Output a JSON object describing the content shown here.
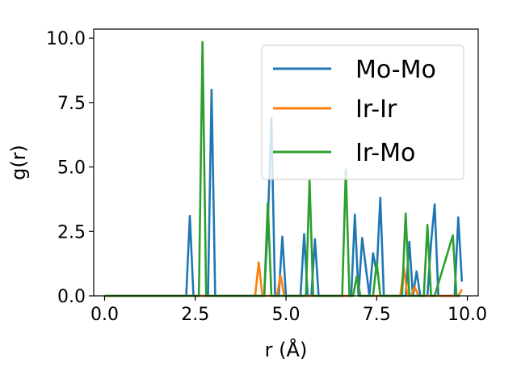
{
  "chart_data": {
    "type": "line",
    "title": "",
    "xlabel": "r (Å)",
    "ylabel": "g(r)",
    "xlim": [
      -0.3,
      10.3
    ],
    "ylim": [
      0,
      10.35
    ],
    "xticks": [
      "0.0",
      "2.5",
      "5.0",
      "7.5",
      "10.0"
    ],
    "yticks": [
      "0.0",
      "2.5",
      "5.0",
      "7.5",
      "10.0"
    ],
    "grid": false,
    "legend_position": "upper-right",
    "series": [
      {
        "name": "Mo-Mo",
        "color": "#1f77b4",
        "x": [
          0,
          2.25,
          2.35,
          2.45,
          2.55,
          2.85,
          2.95,
          3.05,
          3.15,
          4.4,
          4.5,
          4.6,
          4.7,
          4.8,
          4.9,
          5.0,
          5.4,
          5.5,
          5.6,
          5.7,
          5.8,
          5.9,
          6.7,
          6.8,
          6.9,
          7.0,
          7.1,
          7.3,
          7.4,
          7.5,
          7.6,
          7.7,
          8.3,
          8.4,
          8.5,
          8.6,
          8.7,
          8.9,
          9.0,
          9.1,
          9.2,
          9.65,
          9.75,
          9.85
        ],
        "y": [
          0,
          0,
          3.1,
          0,
          0,
          0,
          8.0,
          0,
          0,
          0,
          2.8,
          6.9,
          0,
          0,
          2.3,
          0,
          0,
          2.4,
          0,
          0,
          2.2,
          0,
          0,
          0,
          3.15,
          0,
          2.25,
          0,
          1.65,
          0.9,
          3.8,
          0,
          0,
          2.1,
          0,
          0.95,
          0,
          0,
          2.05,
          3.55,
          0,
          0,
          3.05,
          0.55
        ]
      },
      {
        "name": "Ir-Ir",
        "color": "#ff7f0e",
        "x": [
          0,
          4.15,
          4.25,
          4.35,
          4.45,
          4.75,
          4.85,
          4.95,
          5.05,
          6.85,
          6.95,
          7.05,
          7.15,
          8.15,
          8.25,
          8.35,
          8.45,
          8.55,
          8.65,
          8.75,
          9.75,
          9.85
        ],
        "y": [
          0,
          0,
          1.3,
          0,
          0,
          0,
          0.8,
          0,
          0,
          0,
          0.75,
          0,
          0,
          0,
          1.1,
          0,
          0,
          0.35,
          0,
          0,
          0,
          0.25
        ]
      },
      {
        "name": "Ir-Mo",
        "color": "#2ca02c",
        "x": [
          0,
          2.6,
          2.7,
          2.8,
          4.4,
          4.5,
          4.6,
          4.7,
          4.8,
          5.55,
          5.65,
          5.75,
          5.85,
          6.55,
          6.65,
          6.75,
          6.85,
          6.95,
          7.05,
          7.4,
          7.5,
          7.6,
          8.2,
          8.3,
          8.4,
          8.5,
          8.8,
          8.9,
          9.0,
          9.1,
          9.6,
          9.7,
          9.8
        ],
        "y": [
          0,
          0,
          9.85,
          0,
          0,
          3.6,
          0,
          0,
          0,
          0,
          4.5,
          0,
          0,
          0,
          4.9,
          0,
          0,
          0.75,
          0,
          0,
          1.3,
          0,
          0,
          3.2,
          0,
          0,
          0,
          2.75,
          0,
          0,
          2.35,
          0,
          0
        ]
      }
    ]
  }
}
